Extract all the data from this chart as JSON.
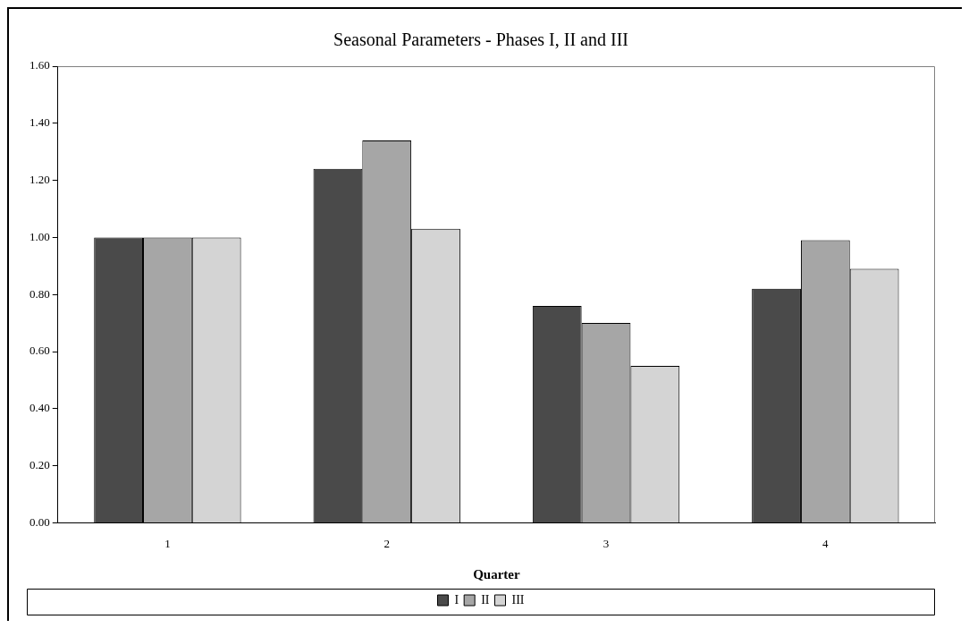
{
  "chart_data": {
    "type": "bar",
    "title": "Seasonal Parameters - Phases I, II and III",
    "xlabel": "Quarter",
    "categories": [
      "1",
      "2",
      "3",
      "4"
    ],
    "series": [
      {
        "name": "I",
        "color": "#4a4a4a",
        "values": [
          1.0,
          1.24,
          0.76,
          0.82
        ]
      },
      {
        "name": "II",
        "color": "#a6a6a6",
        "values": [
          1.0,
          1.34,
          0.7,
          0.99
        ]
      },
      {
        "name": "III",
        "color": "#d4d4d4",
        "values": [
          1.0,
          1.03,
          0.55,
          0.89
        ]
      }
    ],
    "ylim": [
      0,
      1.6
    ],
    "yticks": [
      {
        "value": 0,
        "label": "0.00"
      },
      {
        "value": 0.2,
        "label": "0.20"
      },
      {
        "value": 0.4,
        "label": "0.40"
      },
      {
        "value": 0.6,
        "label": "0.60"
      },
      {
        "value": 0.8,
        "label": "0.80"
      },
      {
        "value": 1,
        "label": "1.00"
      },
      {
        "value": 1.2,
        "label": "1.20"
      },
      {
        "value": 1.4,
        "label": "1.40"
      },
      {
        "value": 1.6,
        "label": "1.60"
      }
    ],
    "grid": false,
    "legend": "bottom"
  }
}
